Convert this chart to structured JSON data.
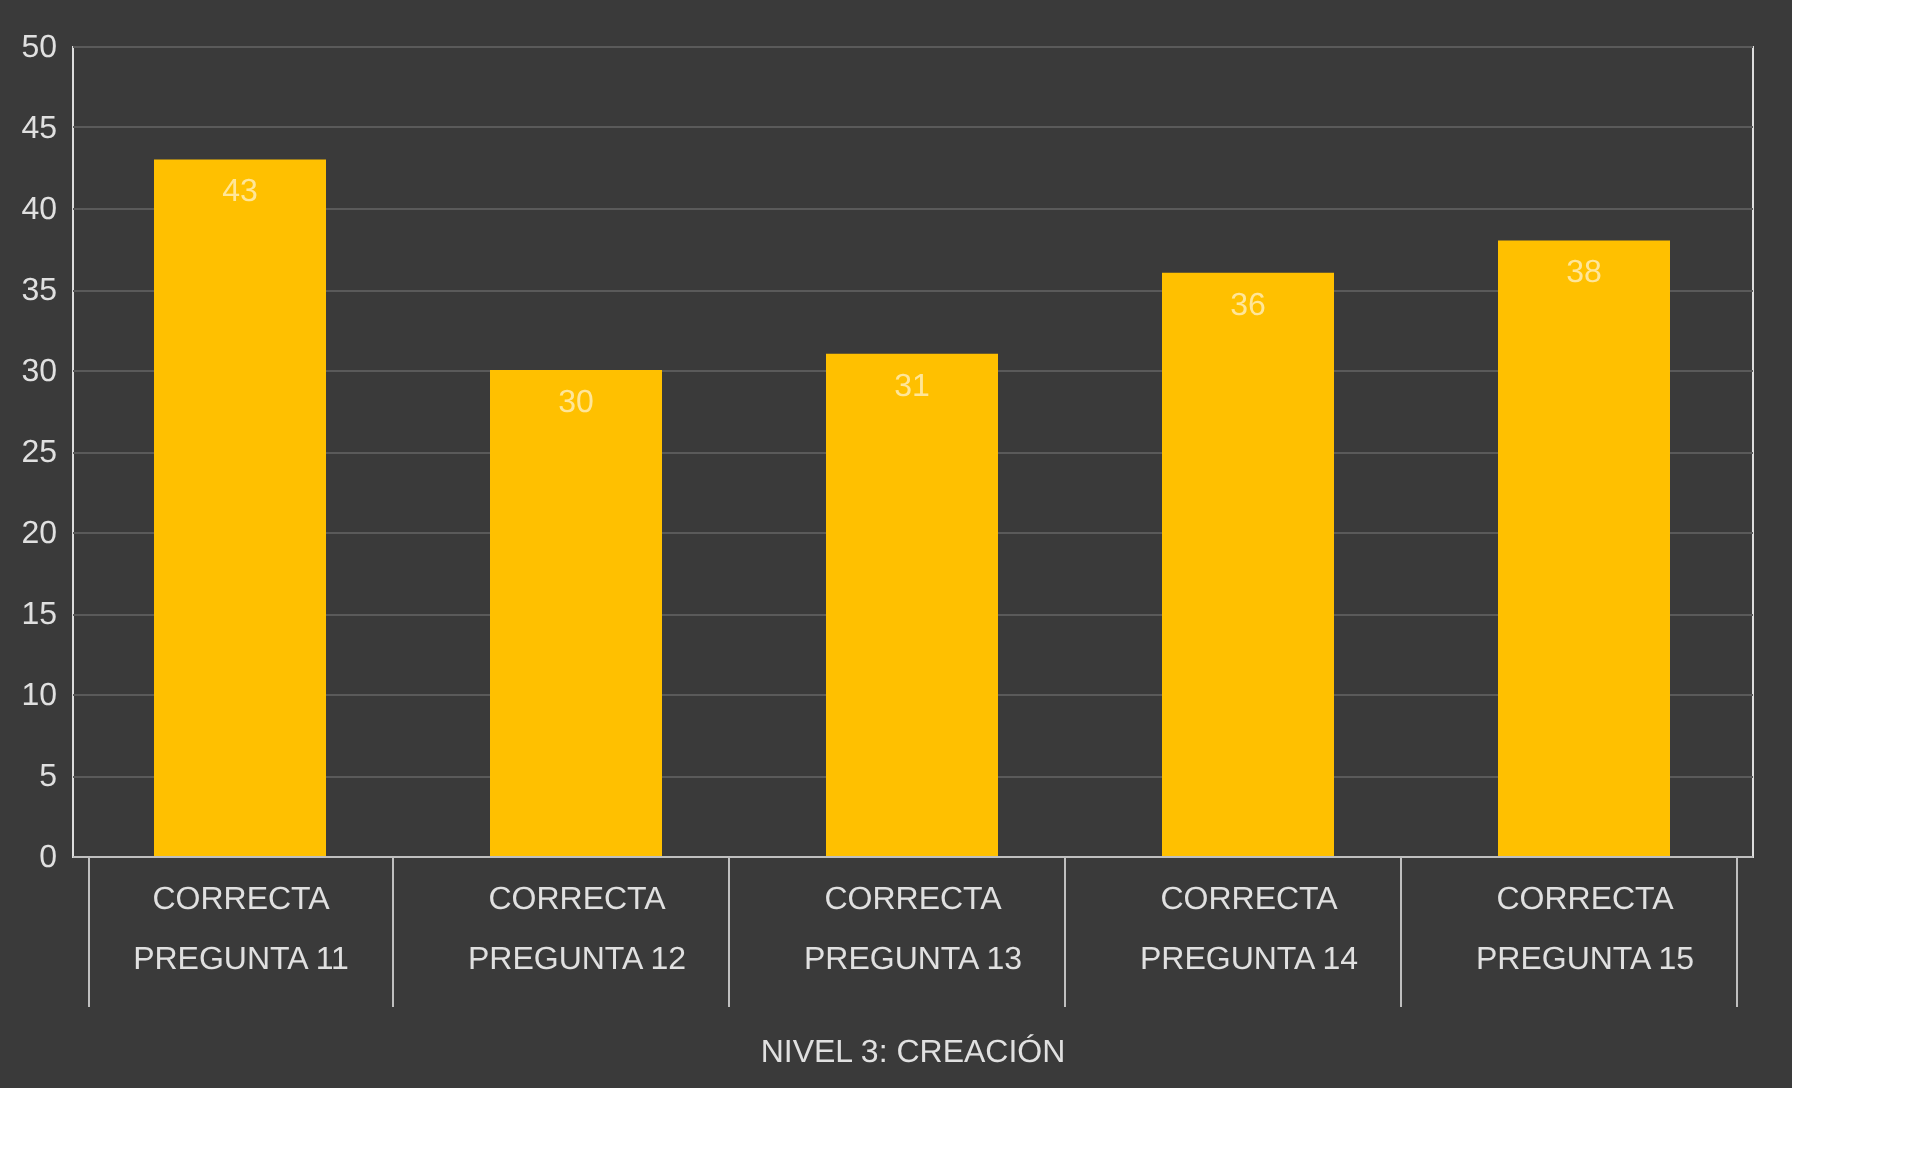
{
  "chart_data": {
    "type": "bar",
    "categories": [
      "CORRECTA\nPREGUNTA 11",
      "CORRECTA\nPREGUNTA 12",
      "CORRECTA\nPREGUNTA 13",
      "CORRECTA\nPREGUNTA 14",
      "CORRECTA\nPREGUNTA 15"
    ],
    "values": [
      43,
      30,
      31,
      36,
      38
    ],
    "color": "#ffc000",
    "xlabel": "NIVEL 3: CREACIÓN",
    "ylim": [
      0,
      50
    ],
    "yticks": [
      0,
      5,
      10,
      15,
      20,
      25,
      30,
      35,
      40,
      45,
      50
    ],
    "grid": "y",
    "data_labels": true
  }
}
